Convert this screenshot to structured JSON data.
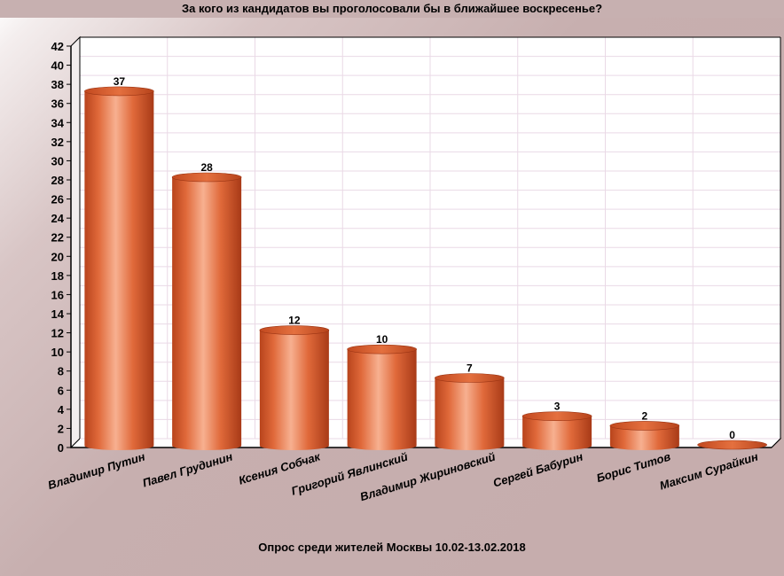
{
  "chart_data": {
    "type": "bar",
    "title": "За кого из кандидатов вы проголосовали бы в ближайшее воскресенье?",
    "subtitle": "Опрос среди жителей Москвы 10.02-13.02.2018",
    "categories": [
      "Владимир Путин",
      "Павел Грудинин",
      "Ксения Собчак",
      "Григорий Явлинский",
      "Владимир Жириновский",
      "Сергей Бабурин",
      "Борис Титов",
      "Максим Сурайкин"
    ],
    "values": [
      37,
      28,
      12,
      10,
      7,
      3,
      2,
      0
    ],
    "ylim": [
      0,
      42
    ],
    "yticks": [
      0,
      2,
      4,
      6,
      8,
      10,
      12,
      14,
      16,
      18,
      20,
      22,
      24,
      26,
      28,
      30,
      32,
      34,
      36,
      38,
      40,
      42
    ],
    "xlabel": "",
    "ylabel": "",
    "grid": true,
    "bar_color": "#d9552a",
    "bar_highlight": "#f7b090",
    "bar_shadow": "#a83a17"
  }
}
